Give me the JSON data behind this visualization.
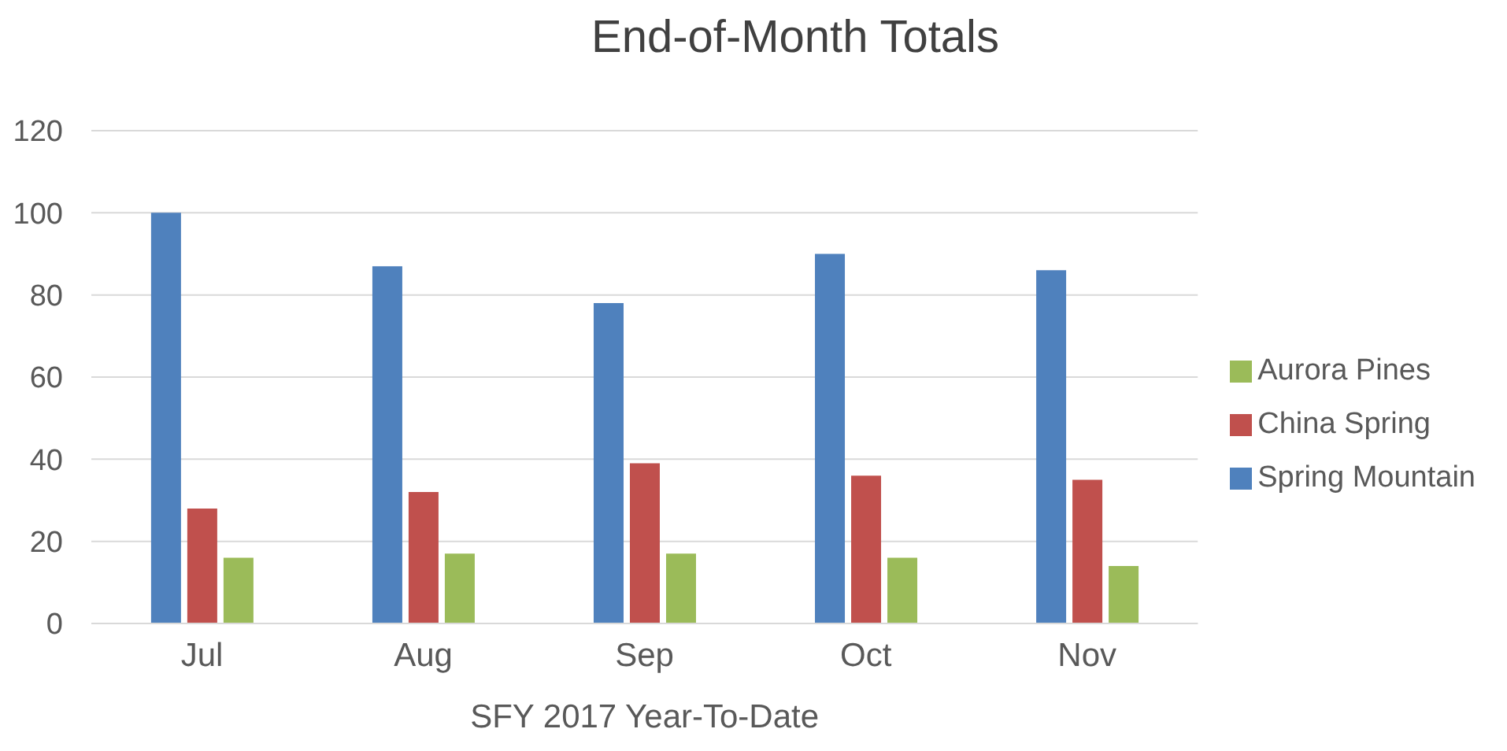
{
  "chart_data": {
    "type": "bar",
    "title": "End-of-Month Totals",
    "xlabel": "SFY 2017 Year-To-Date",
    "categories": [
      "Jul",
      "Aug",
      "Sep",
      "Oct",
      "Nov"
    ],
    "series": [
      {
        "name": "Spring Mountain",
        "color": "#4f81bd",
        "values": [
          100,
          87,
          78,
          90,
          86
        ]
      },
      {
        "name": "China Spring",
        "color": "#c0504d",
        "values": [
          28,
          32,
          39,
          36,
          35
        ]
      },
      {
        "name": "Aurora Pines",
        "color": "#9bbb59",
        "values": [
          16,
          17,
          17,
          16,
          14
        ]
      }
    ],
    "ylim": [
      0,
      120
    ],
    "yticks": [
      0,
      20,
      40,
      60,
      80,
      100,
      120
    ],
    "grid": "y",
    "legend": "right"
  }
}
